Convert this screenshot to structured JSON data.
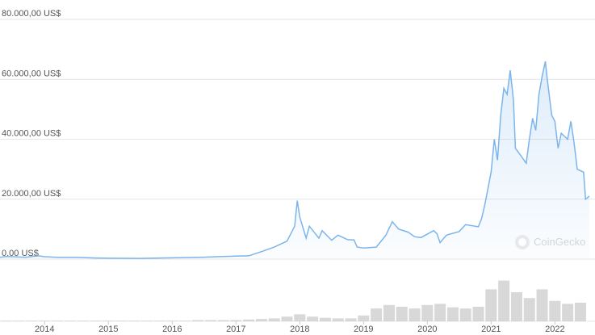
{
  "chart_data": [
    {
      "type": "line",
      "watermark": "CoinGecko",
      "color": "#7cb5ec",
      "x": [
        2013.3,
        2013.4,
        2013.5,
        2013.7,
        2013.9,
        2014.0,
        2014.2,
        2014.5,
        2014.8,
        2015.0,
        2015.5,
        2016.0,
        2016.5,
        2017.0,
        2017.2,
        2017.4,
        2017.6,
        2017.8,
        2017.92,
        2017.96,
        2018.0,
        2018.05,
        2018.1,
        2018.15,
        2018.3,
        2018.35,
        2018.5,
        2018.6,
        2018.75,
        2018.85,
        2018.9,
        2019.0,
        2019.2,
        2019.35,
        2019.45,
        2019.55,
        2019.7,
        2019.8,
        2019.9,
        2020.1,
        2020.15,
        2020.2,
        2020.3,
        2020.5,
        2020.6,
        2020.8,
        2020.85,
        2020.9,
        2021.0,
        2021.05,
        2021.1,
        2021.15,
        2021.2,
        2021.25,
        2021.3,
        2021.35,
        2021.38,
        2021.45,
        2021.55,
        2021.6,
        2021.65,
        2021.7,
        2021.75,
        2021.8,
        2021.85,
        2021.88,
        2021.95,
        2022.0,
        2022.05,
        2022.1,
        2022.2,
        2022.25,
        2022.3,
        2022.35,
        2022.45,
        2022.48,
        2022.54
      ],
      "values": [
        600,
        900,
        800,
        600,
        1100,
        800,
        600,
        600,
        380,
        300,
        250,
        430,
        650,
        1000,
        1100,
        2500,
        4000,
        6000,
        11000,
        19500,
        14000,
        10500,
        7000,
        11000,
        7000,
        9500,
        6300,
        8000,
        6500,
        6400,
        4000,
        3700,
        4000,
        8000,
        12500,
        10000,
        9000,
        7500,
        7200,
        9500,
        8500,
        5500,
        8000,
        9200,
        11500,
        10800,
        13500,
        18000,
        29000,
        40000,
        33000,
        48000,
        57000,
        55000,
        63000,
        53000,
        37000,
        35000,
        32000,
        40000,
        47000,
        43000,
        55000,
        61000,
        66000,
        60000,
        48000,
        46000,
        37000,
        42000,
        40000,
        46000,
        39000,
        30000,
        29000,
        20000,
        21000
      ],
      "xlim": [
        2013.3,
        2022.54
      ],
      "ylim": [
        0,
        80000
      ],
      "xticks": [
        2014,
        2015,
        2016,
        2017,
        2018,
        2019,
        2020,
        2021,
        2022
      ],
      "yticks": [
        {
          "value": 0,
          "label": "0,00 US$"
        },
        {
          "value": 20000,
          "label": "20.000,00 US$"
        },
        {
          "value": 40000,
          "label": "40.000,00 US$"
        },
        {
          "value": 60000,
          "label": "60.000,00 US$"
        },
        {
          "value": 80000,
          "label": "80.000,00 US$"
        }
      ],
      "grid": true
    },
    {
      "type": "bar",
      "color": "#c8c8c8",
      "x": [
        2013.4,
        2013.6,
        2013.8,
        2014.0,
        2014.2,
        2014.4,
        2014.6,
        2014.8,
        2015.0,
        2015.2,
        2015.4,
        2015.6,
        2015.8,
        2016.0,
        2016.2,
        2016.4,
        2016.6,
        2016.8,
        2017.0,
        2017.2,
        2017.4,
        2017.6,
        2017.8,
        2018.0,
        2018.2,
        2018.4,
        2018.6,
        2018.8,
        2019.0,
        2019.2,
        2019.4,
        2019.6,
        2019.8,
        2020.0,
        2020.2,
        2020.4,
        2020.6,
        2020.8,
        2021.0,
        2021.2,
        2021.4,
        2021.6,
        2021.8,
        2022.0,
        2022.2,
        2022.4
      ],
      "values": [
        1,
        1,
        1,
        1,
        1,
        1,
        1,
        1,
        1,
        1,
        1,
        1,
        1,
        1,
        1,
        2,
        2,
        2,
        2,
        3,
        4,
        5,
        8,
        12,
        8,
        6,
        5,
        5,
        10,
        22,
        28,
        25,
        22,
        28,
        30,
        24,
        22,
        25,
        55,
        70,
        50,
        40,
        55,
        35,
        30,
        32
      ],
      "ylim": [
        0,
        100
      ]
    }
  ]
}
